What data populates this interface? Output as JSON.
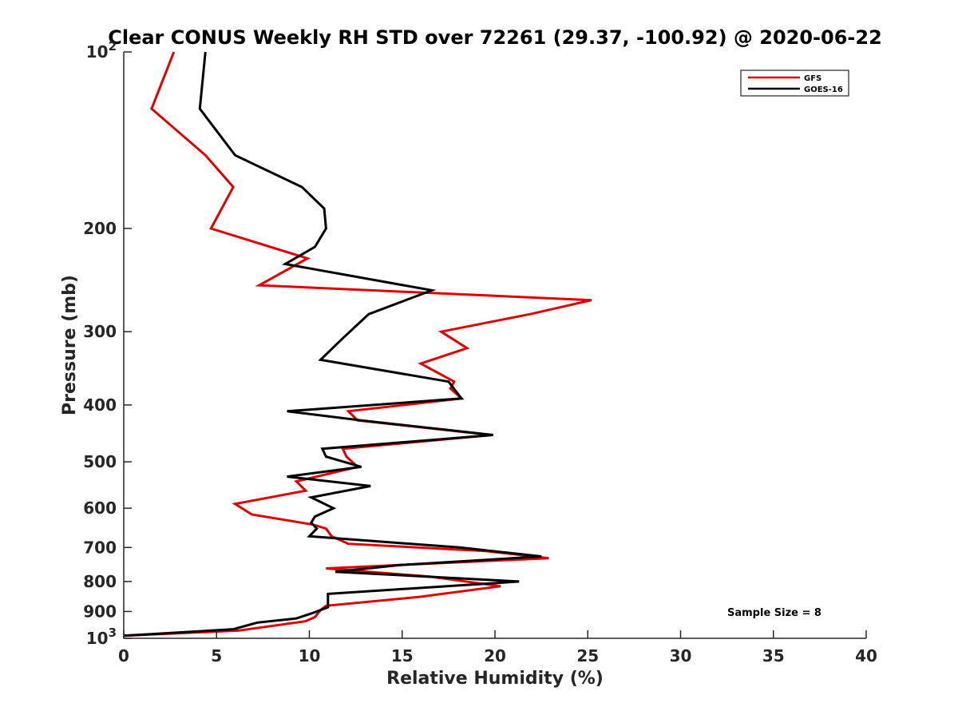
{
  "chart_data": {
    "type": "line",
    "title": "Clear CONUS Weekly RH STD over 72261 (29.37, -100.92) @ 2020-06-22",
    "xlabel": "Relative Humidity (%)",
    "ylabel": "Pressure (mb)",
    "xlim": [
      0,
      40
    ],
    "ylim": [
      100,
      1000
    ],
    "y_scale": "log",
    "y_reversed": true,
    "grid": false,
    "x_ticks": [
      0,
      5,
      10,
      15,
      20,
      25,
      30,
      35,
      40
    ],
    "x_tick_labels": [
      "0",
      "5",
      "10",
      "15",
      "20",
      "25",
      "30",
      "35",
      "40"
    ],
    "y_ticks": [
      100,
      200,
      300,
      400,
      500,
      600,
      700,
      800,
      900,
      1000
    ],
    "y_tick_labels": [
      {
        "base": "10",
        "exp": "2"
      },
      {
        "base": "200",
        "exp": ""
      },
      {
        "base": "300",
        "exp": ""
      },
      {
        "base": "400",
        "exp": ""
      },
      {
        "base": "500",
        "exp": ""
      },
      {
        "base": "600",
        "exp": ""
      },
      {
        "base": "700",
        "exp": ""
      },
      {
        "base": "800",
        "exp": ""
      },
      {
        "base": "900",
        "exp": ""
      },
      {
        "base": "10",
        "exp": "3"
      }
    ],
    "legend_position": "top-right",
    "annotation": "Sample Size = 8",
    "series": [
      {
        "name": "GFS",
        "color": "#e00000",
        "points": [
          [
            2.7,
            100
          ],
          [
            1.5,
            125
          ],
          [
            4.4,
            150
          ],
          [
            5.9,
            170
          ],
          [
            4.7,
            200
          ],
          [
            9.9,
            225
          ],
          [
            7.3,
            250
          ],
          [
            25.2,
            265
          ],
          [
            21.9,
            280
          ],
          [
            17.1,
            300
          ],
          [
            18.5,
            320
          ],
          [
            16.0,
            340
          ],
          [
            17.8,
            365
          ],
          [
            17.6,
            375
          ],
          [
            18.2,
            390
          ],
          [
            12.1,
            410
          ],
          [
            12.6,
            425
          ],
          [
            19.8,
            450
          ],
          [
            11.8,
            475
          ],
          [
            12.0,
            490
          ],
          [
            12.6,
            510
          ],
          [
            9.3,
            540
          ],
          [
            9.8,
            560
          ],
          [
            6.0,
            590
          ],
          [
            6.9,
            615
          ],
          [
            10.2,
            640
          ],
          [
            10.9,
            650
          ],
          [
            11.2,
            670
          ],
          [
            12.1,
            690
          ],
          [
            19.5,
            710
          ],
          [
            22.9,
            730
          ],
          [
            10.9,
            760
          ],
          [
            16.5,
            785
          ],
          [
            20.3,
            815
          ],
          [
            15.9,
            850
          ],
          [
            10.9,
            880
          ],
          [
            10.6,
            895
          ],
          [
            10.3,
            920
          ],
          [
            9.8,
            935
          ],
          [
            6.2,
            970
          ],
          [
            0.0,
            990
          ]
        ]
      },
      {
        "name": "GOES-16",
        "color": "#000000",
        "points": [
          [
            4.4,
            100
          ],
          [
            4.1,
            125
          ],
          [
            6.0,
            150
          ],
          [
            9.6,
            170
          ],
          [
            10.8,
            185
          ],
          [
            10.9,
            200
          ],
          [
            10.3,
            215
          ],
          [
            8.7,
            230
          ],
          [
            16.6,
            255
          ],
          [
            13.2,
            280
          ],
          [
            11.7,
            310
          ],
          [
            10.6,
            335
          ],
          [
            17.5,
            365
          ],
          [
            18.2,
            390
          ],
          [
            8.8,
            410
          ],
          [
            12.8,
            425
          ],
          [
            19.9,
            450
          ],
          [
            10.7,
            475
          ],
          [
            10.9,
            490
          ],
          [
            12.8,
            510
          ],
          [
            8.8,
            530
          ],
          [
            13.3,
            550
          ],
          [
            10.1,
            575
          ],
          [
            11.3,
            600
          ],
          [
            10.3,
            620
          ],
          [
            10.1,
            635
          ],
          [
            10.4,
            650
          ],
          [
            10.0,
            670
          ],
          [
            18.1,
            700
          ],
          [
            22.5,
            725
          ],
          [
            14.9,
            750
          ],
          [
            11.4,
            770
          ],
          [
            21.3,
            800
          ],
          [
            11.0,
            840
          ],
          [
            11.0,
            870
          ],
          [
            11.0,
            885
          ],
          [
            10.2,
            905
          ],
          [
            9.3,
            925
          ],
          [
            7.2,
            940
          ],
          [
            5.9,
            965
          ],
          [
            0.0,
            990
          ]
        ]
      }
    ]
  }
}
